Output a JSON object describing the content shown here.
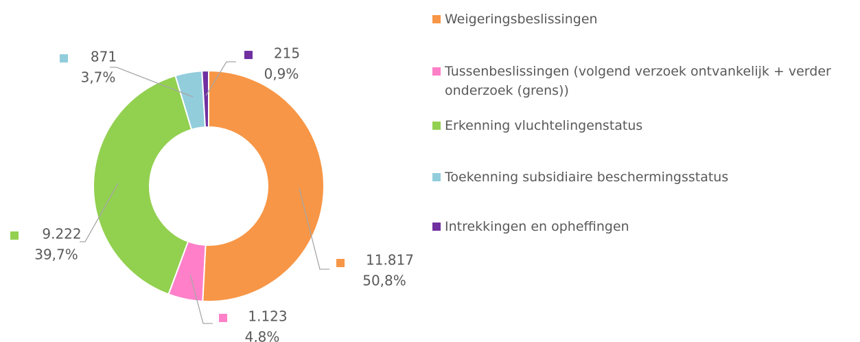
{
  "chart_data": {
    "type": "donut",
    "categories": [
      "Weigeringsbeslissingen",
      "Tussenbeslissingen (volgend verzoek ontvankelijk + verder onderzoek (grens))",
      "Erkenning vluchtelingenstatus",
      "Toekenning subsidiaire beschermingsstatus",
      "Intrekkingen en opheffingen"
    ],
    "values": [
      11817,
      1123,
      9222,
      871,
      215
    ],
    "value_labels": [
      "11.817",
      "1.123",
      "9.222",
      "871",
      "215"
    ],
    "percents": [
      50.8,
      4.8,
      39.7,
      3.7,
      0.9
    ],
    "percent_labels": [
      "50,8%",
      "4,8%",
      "39,7%",
      "3,7%",
      "0,9%"
    ],
    "colors": [
      "#f79646",
      "#ff80c8",
      "#92d050",
      "#92cddc",
      "#7030a0"
    ],
    "legend": "right"
  }
}
